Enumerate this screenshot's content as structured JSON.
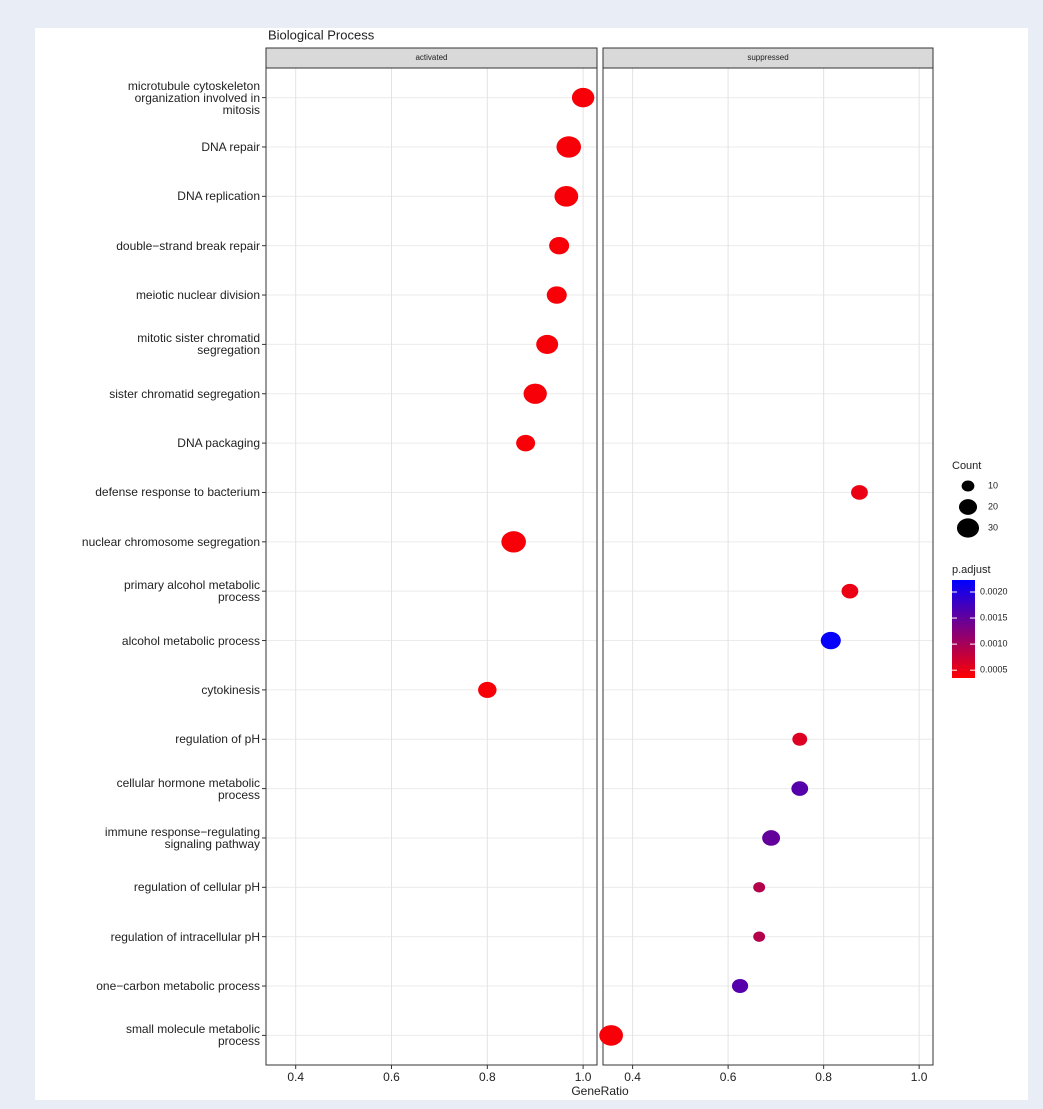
{
  "chart_data": {
    "type": "dotplot",
    "title": "Biological Process",
    "x_label": "GeneRatio",
    "categories": [
      "microtubule cytoskeleton\norganization involved in\nmitosis",
      "DNA repair",
      "DNA replication",
      "double−strand break repair",
      "meiotic nuclear division",
      "mitotic sister chromatid\nsegregation",
      "sister chromatid segregation",
      "DNA packaging",
      "defense response to bacterium",
      "nuclear chromosome segregation",
      "primary alcohol metabolic\nprocess",
      "alcohol metabolic process",
      "cytokinesis",
      "regulation of pH",
      "cellular hormone metabolic\nprocess",
      "immune response−regulating\nsignaling pathway",
      "regulation of cellular pH",
      "regulation of intracellular pH",
      "one−carbon metabolic process",
      "small molecule metabolic\nprocess"
    ],
    "facets": [
      {
        "name": "activated",
        "values": [
          1.0,
          0.97,
          0.965,
          0.95,
          0.945,
          0.925,
          0.9,
          0.88,
          null,
          0.855,
          null,
          null,
          0.8,
          null,
          null,
          null,
          null,
          null,
          null,
          null
        ],
        "counts": [
          25,
          30,
          28,
          20,
          20,
          24,
          27,
          18,
          null,
          30,
          null,
          null,
          17,
          null,
          null,
          null,
          null,
          null,
          null,
          null
        ],
        "p_adjust": [
          0.0004,
          0.0004,
          0.0004,
          0.0004,
          0.0004,
          0.0004,
          0.0004,
          0.0004,
          null,
          0.0004,
          null,
          null,
          0.0004,
          null,
          null,
          null,
          null,
          null,
          null,
          null
        ]
      },
      {
        "name": "suppressed",
        "values": [
          null,
          null,
          null,
          null,
          null,
          null,
          null,
          null,
          0.875,
          null,
          0.855,
          0.815,
          null,
          0.75,
          0.75,
          0.69,
          0.665,
          0.665,
          0.625,
          0.355
        ],
        "counts": [
          null,
          null,
          null,
          null,
          null,
          null,
          null,
          null,
          14,
          null,
          14,
          20,
          null,
          11,
          14,
          16,
          7,
          7,
          13,
          28
        ],
        "p_adjust": [
          null,
          null,
          null,
          null,
          null,
          null,
          null,
          null,
          0.0005,
          null,
          0.0005,
          0.0022,
          null,
          0.0006,
          0.0016,
          0.0015,
          0.0009,
          0.0009,
          0.0016,
          0.0004
        ]
      }
    ],
    "xlim": [
      0.338,
      1.029
    ],
    "xticks": [
      0.4,
      0.6,
      0.8,
      {
        "value": 1.0,
        "label": "1.0"
      }
    ],
    "grid": true,
    "size_legend": {
      "title": "Count",
      "values": [
        10,
        20,
        30
      ]
    },
    "color_legend": {
      "title": "p.adjust",
      "lim": [
        0.00035,
        0.00223
      ],
      "low_color": "#ff0000",
      "high_color": "#0000ff",
      "ticks": [
        0.0005,
        {
          "value": 0.001,
          "label": "0.0010"
        },
        0.0015,
        {
          "value": 0.002,
          "label": "0.0020"
        }
      ]
    }
  }
}
